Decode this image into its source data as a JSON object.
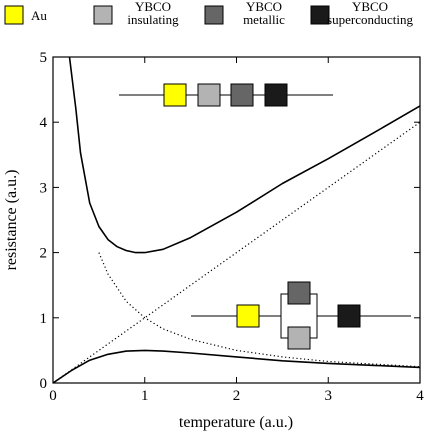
{
  "chart_data": {
    "type": "line",
    "xlabel": "temperature (a.u.)",
    "ylabel": "resistance (a.u.)",
    "xlim": [
      0,
      4
    ],
    "ylim": [
      0,
      5
    ],
    "x_ticks": [
      "0",
      "1",
      "2",
      "3",
      "4"
    ],
    "y_ticks": [
      "0",
      "1",
      "2",
      "3",
      "4",
      "5"
    ],
    "grid": false,
    "legend_placement": "top",
    "legend": [
      {
        "line1": "",
        "line2": "Au",
        "color": "#ffff00"
      },
      {
        "line1": "YBCO",
        "line2": "insulating",
        "color": "#b3b3b3"
      },
      {
        "line1": "YBCO",
        "line2": "metallic",
        "color": "#666666"
      },
      {
        "line1": "YBCO",
        "line2": "superconducting",
        "color": "#1a1a1a"
      }
    ],
    "series": [
      {
        "style": "dotted",
        "x": [
          0.5,
          0.6,
          0.8,
          1.0,
          1.2,
          1.5,
          2.0,
          2.5,
          3.0,
          3.5,
          4.0
        ],
        "y": [
          2.0,
          1.67,
          1.25,
          1.0,
          0.83,
          0.67,
          0.5,
          0.4,
          0.33,
          0.29,
          0.25
        ]
      },
      {
        "style": "dotted",
        "x": [
          0.0,
          0.5,
          1.0,
          1.5,
          2.0,
          2.5,
          3.0,
          3.5,
          4.0
        ],
        "y": [
          0.0,
          0.5,
          1.0,
          1.5,
          2.0,
          2.5,
          3.0,
          3.5,
          4.0
        ]
      },
      {
        "style": "solid",
        "x": [
          0.18,
          0.25,
          0.3,
          0.4,
          0.5,
          0.6,
          0.7,
          0.8,
          0.9,
          1.0,
          1.2,
          1.5,
          2.0,
          2.5,
          3.0,
          3.5,
          4.0
        ],
        "y": [
          5.0,
          4.2,
          3.53,
          2.76,
          2.4,
          2.2,
          2.09,
          2.03,
          2.0,
          2.0,
          2.05,
          2.23,
          2.62,
          3.06,
          3.44,
          3.84,
          4.25
        ]
      },
      {
        "style": "solid",
        "x": [
          0.0,
          0.2,
          0.4,
          0.6,
          0.8,
          1.0,
          1.2,
          1.5,
          2.0,
          2.5,
          3.0,
          3.5,
          4.0
        ],
        "y": [
          0.0,
          0.19,
          0.35,
          0.44,
          0.49,
          0.5,
          0.49,
          0.46,
          0.4,
          0.34,
          0.3,
          0.27,
          0.24
        ]
      }
    ],
    "insets": [
      {
        "kind": "series",
        "boxes": [
          "#ffff00",
          "#b3b3b3",
          "#666666",
          "#1a1a1a"
        ]
      },
      {
        "kind": "parallel",
        "first": "#ffff00",
        "parallel": [
          "#666666",
          "#b3b3b3"
        ],
        "last": "#1a1a1a"
      }
    ]
  }
}
